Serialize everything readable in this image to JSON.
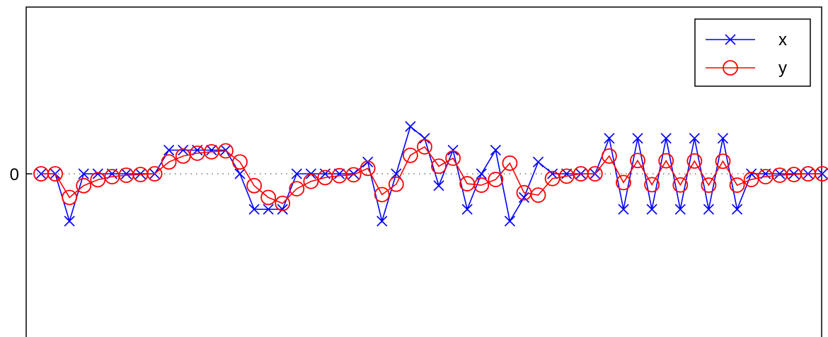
{
  "chart_data": {
    "type": "line",
    "title": "",
    "xlabel": "",
    "ylabel": "",
    "x": [
      0,
      1,
      2,
      3,
      4,
      5,
      6,
      7,
      8,
      9,
      10,
      11,
      12,
      13,
      14,
      15,
      16,
      17,
      18,
      19,
      20,
      21,
      22,
      23,
      24,
      25,
      26,
      27,
      28,
      29,
      30,
      31,
      32,
      33,
      34,
      35,
      36,
      37,
      38,
      39,
      40,
      41,
      42,
      43,
      44,
      45,
      46,
      47,
      48,
      49,
      50,
      51,
      52,
      53,
      54,
      55
    ],
    "xlim": [
      0,
      55
    ],
    "ylim": [
      -3.6,
      3.6
    ],
    "y_ticks": [
      {
        "value": 0,
        "label": "0"
      }
    ],
    "zero_line": "dotted",
    "grid": false,
    "legend_position": "top-right",
    "series": [
      {
        "name": "x",
        "color": "#0000ff",
        "marker": "x",
        "values": [
          0,
          0,
          -2,
          0,
          0,
          0,
          0,
          0,
          0,
          1,
          1,
          1,
          1,
          1,
          0,
          -1.5,
          -1.5,
          -1.5,
          0,
          0,
          0,
          0,
          0,
          0.5,
          -2,
          0,
          2,
          1.5,
          -0.5,
          1,
          -1.5,
          0,
          1,
          -2,
          -1,
          0.5,
          0,
          0,
          0,
          0,
          1.5,
          -1.5,
          1.5,
          -1.5,
          1.5,
          -1.5,
          1.5,
          -1.5,
          1.5,
          -1.5,
          0,
          0,
          0,
          0,
          0,
          0
        ]
      },
      {
        "name": "y",
        "color": "#ff0000",
        "marker": "o",
        "values": [
          0,
          0,
          -1,
          -0.5,
          -0.25,
          -0.12,
          -0.06,
          -0.03,
          0,
          0.5,
          0.75,
          0.87,
          0.93,
          0.97,
          0.5,
          -0.5,
          -1,
          -1.25,
          -0.63,
          -0.32,
          -0.16,
          -0.08,
          -0.04,
          0.23,
          -0.88,
          -0.44,
          0.78,
          1.14,
          0.32,
          0.66,
          -0.42,
          -0.48,
          -0.24,
          0.45,
          -0.8,
          -0.9,
          -0.2,
          -0.1,
          0,
          0,
          0.75,
          -0.37,
          0.56,
          -0.46,
          0.55,
          -0.47,
          0.54,
          -0.48,
          0.53,
          -0.48,
          -0.24,
          -0.12,
          -0.06,
          -0.03,
          0,
          0
        ]
      }
    ]
  }
}
